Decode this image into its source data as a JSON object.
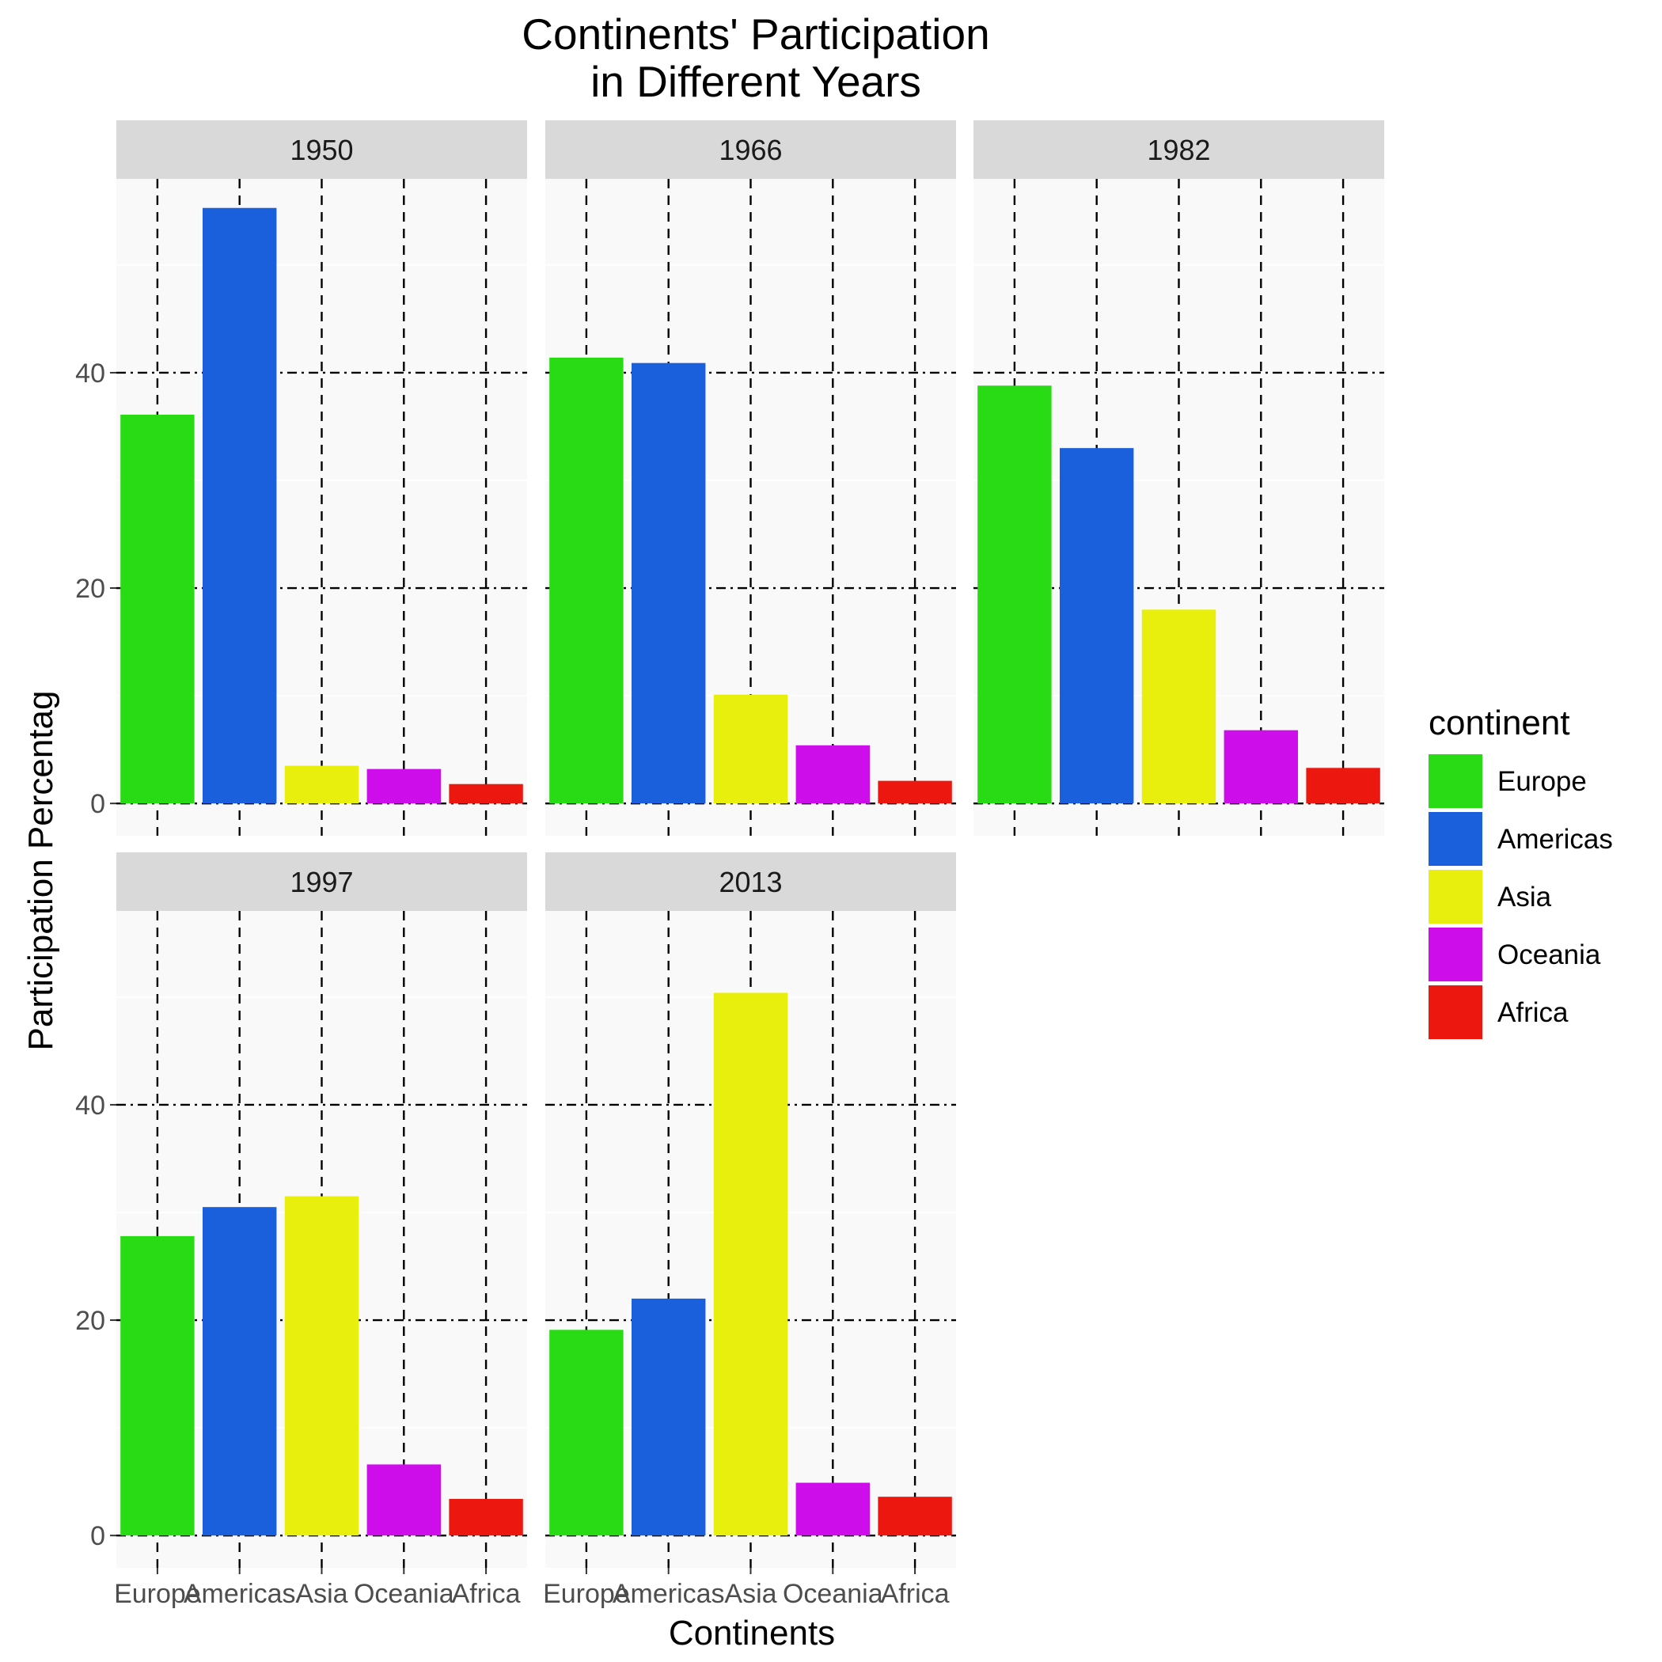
{
  "chart_data": {
    "type": "bar",
    "title_lines": [
      "Continents' Participation",
      "in Different Years"
    ],
    "xlabel": "Continents",
    "ylabel": "Participation Percentag",
    "categories": [
      "Europe",
      "Americas",
      "Asia",
      "Oceania",
      "Africa"
    ],
    "ylim": [
      -3,
      58
    ],
    "yticks": [
      0,
      20,
      40
    ],
    "ytick_labels": [
      "0",
      "20",
      "40"
    ],
    "grid": true,
    "legend": {
      "title": "continent",
      "placement": "right",
      "items": [
        {
          "label": "Europe",
          "color": "#29db15"
        },
        {
          "label": "Americas",
          "color": "#1a5fdc"
        },
        {
          "label": "Asia",
          "color": "#e8ef0c"
        },
        {
          "label": "Oceania",
          "color": "#cd0eea"
        },
        {
          "label": "Africa",
          "color": "#ec180f"
        }
      ]
    },
    "panels": [
      {
        "year": "1950",
        "values": [
          36.1,
          55.3,
          3.5,
          3.2,
          1.8
        ]
      },
      {
        "year": "1966",
        "values": [
          41.4,
          40.9,
          10.1,
          5.4,
          2.1
        ]
      },
      {
        "year": "1982",
        "values": [
          38.8,
          33.0,
          18.0,
          6.8,
          3.3
        ]
      },
      {
        "year": "1997",
        "values": [
          27.8,
          30.5,
          31.5,
          6.6,
          3.4
        ]
      },
      {
        "year": "2013",
        "values": [
          19.1,
          22.0,
          50.4,
          4.9,
          3.6
        ]
      }
    ]
  }
}
